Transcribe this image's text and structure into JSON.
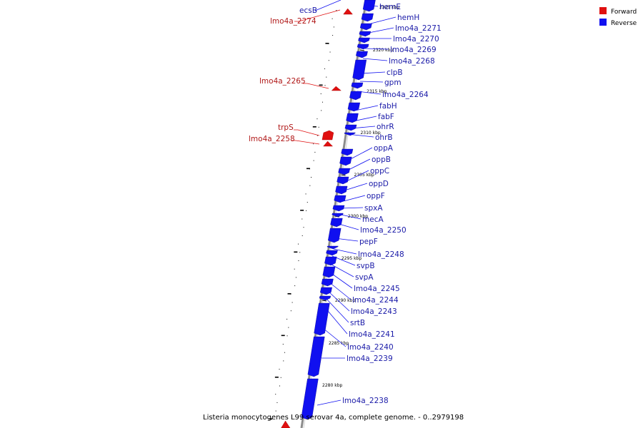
{
  "caption": "Listeria monocytogenes L99 serovar 4a, complete genome. - 0..2979198",
  "legend": [
    {
      "label": "Forward",
      "color": "#e01010"
    },
    {
      "label": "Reverse",
      "color": "#1010f0"
    }
  ],
  "colors": {
    "forward": "#e01010",
    "reverse": "#1010f0",
    "backbone": "#8c8c8c",
    "forward_text": "#b01818",
    "reverse_text": "#1a1aa8"
  },
  "ticks": [
    "2325 kbp",
    "2320 kbp",
    "2315 kbp",
    "2310 kbp",
    "2305 kbp",
    "2300 kbp",
    "2295 kbp",
    "2290 kbp",
    "2285 kbp",
    "2280 kbp"
  ],
  "reverse_genes": [
    "hemE",
    "hemH",
    "lmo4a_2271",
    "lmo4a_2270",
    "lmo4a_2269",
    "lmo4a_2268",
    "clpB",
    "gpm",
    "lmo4a_2264",
    "fabH",
    "fabF",
    "ohrR",
    "ohrB",
    "oppA",
    "oppB",
    "oppC",
    "oppD",
    "oppF",
    "spxA",
    "mecA",
    "lmo4a_2250",
    "pepF",
    "lmo4a_2248",
    "svpB",
    "svpA",
    "lmo4a_2245",
    "lmo4a_2244",
    "lmo4a_2243",
    "srtB",
    "lmo4a_2241",
    "lmo4a_2240",
    "lmo4a_2239",
    "lmo4a_2238"
  ],
  "forward_genes": [
    "lmo4a_2274",
    "lmo4a_2265",
    "trpS",
    "lmo4a_2258"
  ],
  "ecs_label": "ecsB"
}
